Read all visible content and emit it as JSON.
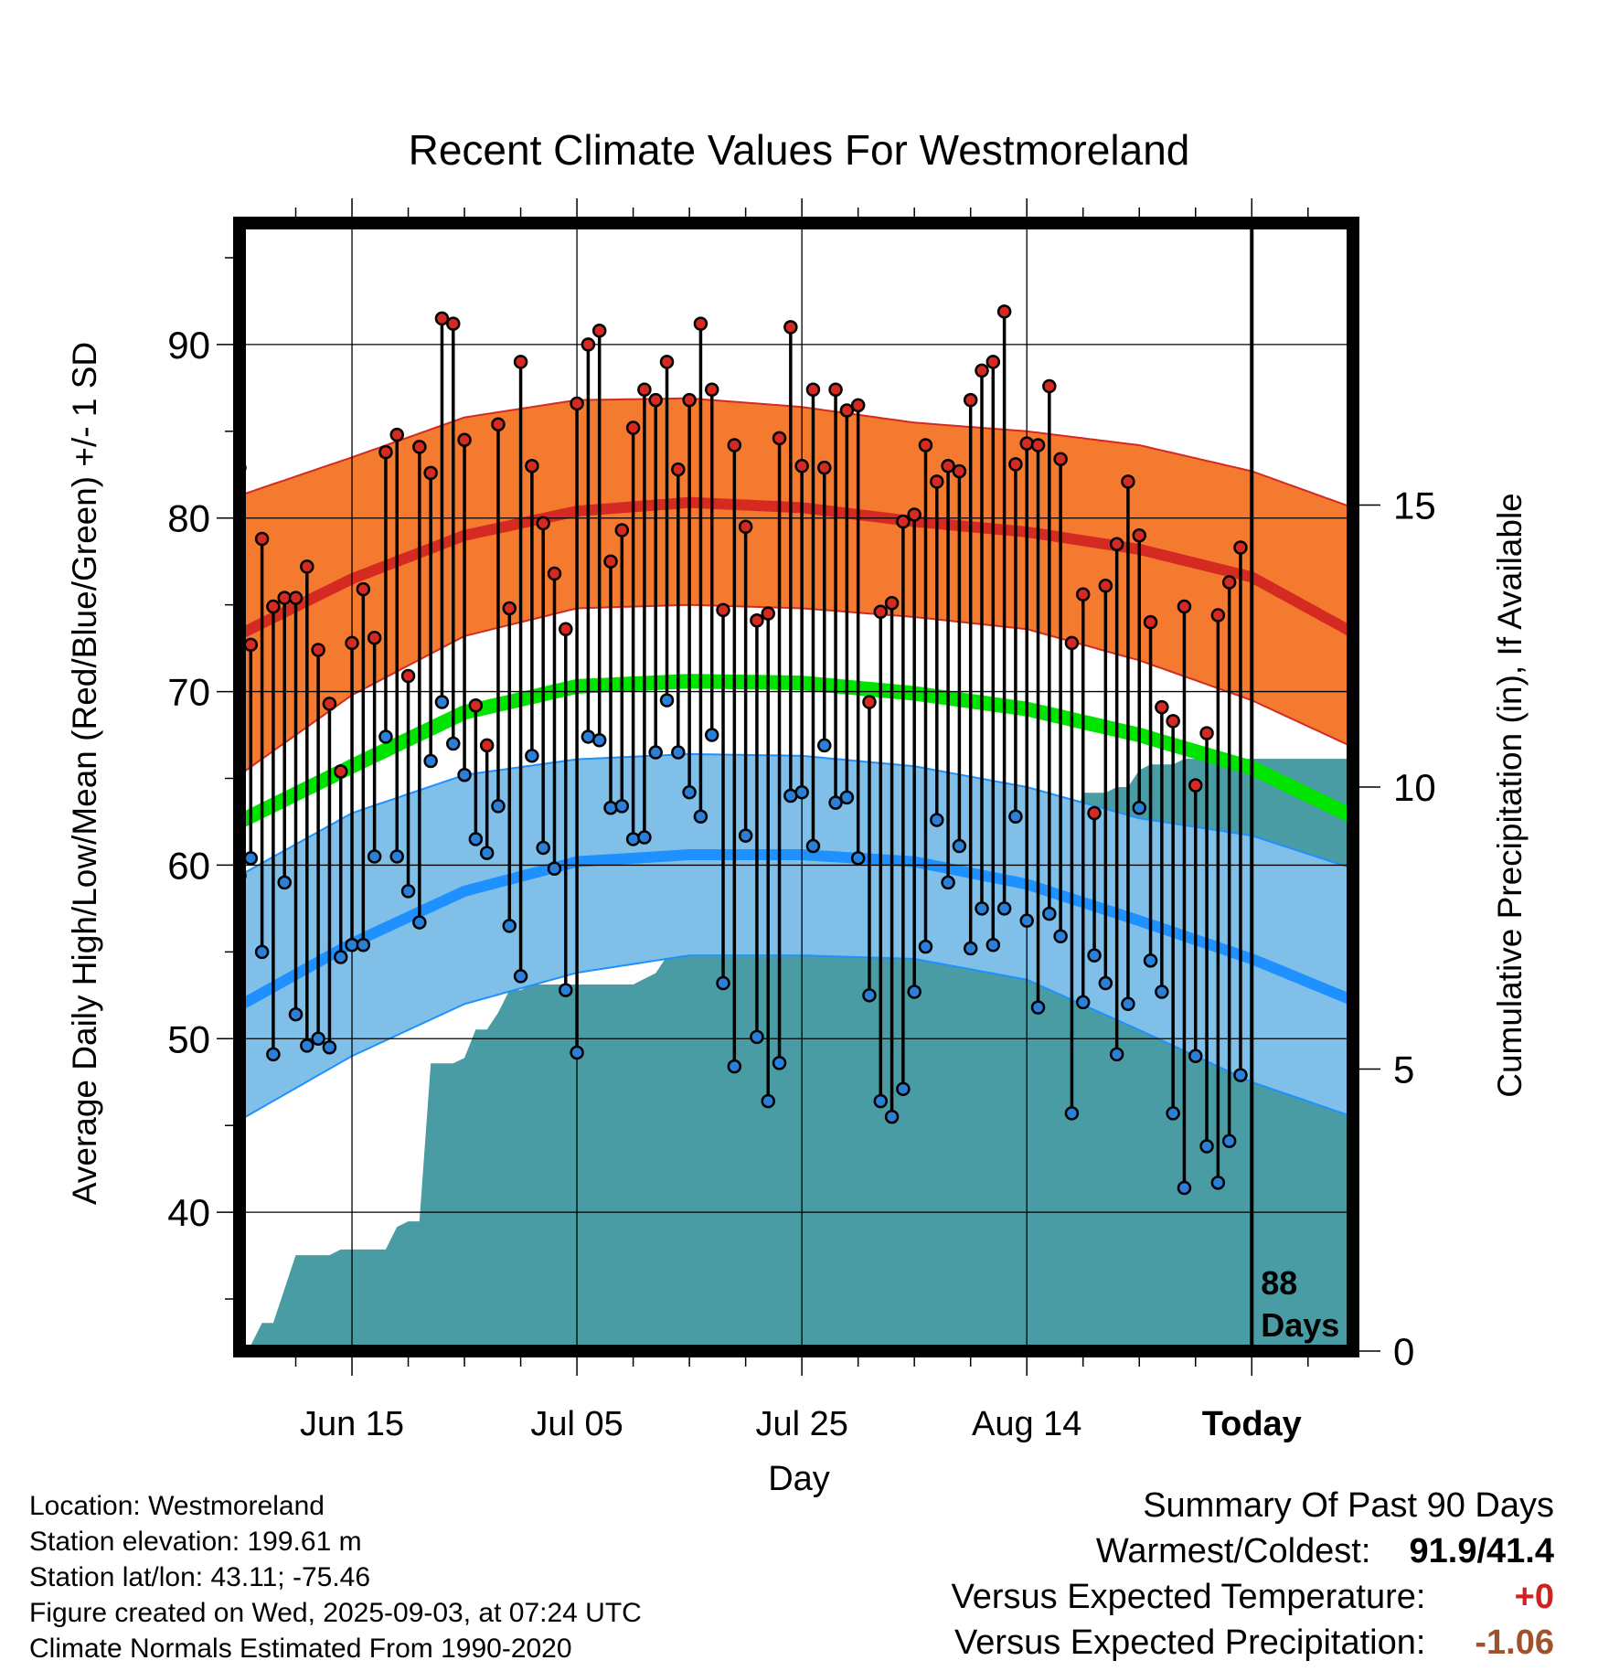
{
  "chart_data": {
    "type": "line",
    "title": "Recent Climate Values For Westmoreland",
    "xlabel": "Day",
    "ylabel_left": "Average Daily High/Low/Mean (Red/Blue/Green) +/- 1 SD",
    "ylabel_right": "Cumulative Precipitation (in), If Available",
    "ylim_left": [
      32,
      97
    ],
    "ylim_right": [
      0,
      20
    ],
    "x_range_days": [
      -90,
      9
    ],
    "x_ticks": [
      {
        "day": -80,
        "label": "Jun 15"
      },
      {
        "day": -60,
        "label": "Jul 05"
      },
      {
        "day": -40,
        "label": "Jul 25"
      },
      {
        "day": -20,
        "label": "Aug 14"
      },
      {
        "day": 0,
        "label": "Today"
      }
    ],
    "y_ticks_left": [
      40,
      50,
      60,
      70,
      80,
      90
    ],
    "y_ticks_right": [
      0,
      5,
      10,
      15
    ],
    "grid": true,
    "today_marker": {
      "day": 0,
      "label_line1": "88",
      "label_line2": "Days"
    },
    "normals": {
      "days": [
        -90,
        -80,
        -70,
        -60,
        -50,
        -40,
        -30,
        -20,
        -10,
        0,
        9
      ],
      "high_mean": [
        73.3,
        76.5,
        79.0,
        80.4,
        80.9,
        80.6,
        79.8,
        79.2,
        78.2,
        76.6,
        73.4
      ],
      "high_upper": [
        81.3,
        83.5,
        85.8,
        86.8,
        86.9,
        86.4,
        85.5,
        85.0,
        84.2,
        82.7,
        80.6
      ],
      "high_lower": [
        65.2,
        69.8,
        73.2,
        74.8,
        75.0,
        74.8,
        74.3,
        73.6,
        71.8,
        69.5,
        66.8
      ],
      "mean_temp": [
        62.5,
        65.7,
        68.8,
        70.3,
        70.6,
        70.5,
        69.9,
        69.0,
        67.5,
        65.6,
        62.8
      ],
      "low_mean": [
        51.9,
        55.5,
        58.5,
        60.2,
        60.6,
        60.6,
        60.2,
        58.9,
        56.8,
        54.6,
        52.2
      ],
      "low_upper": [
        59.4,
        63.0,
        65.2,
        66.1,
        66.4,
        66.3,
        65.7,
        64.5,
        62.7,
        61.7,
        59.8
      ],
      "low_lower": [
        45.3,
        49.0,
        52.0,
        53.8,
        54.8,
        54.8,
        54.6,
        53.4,
        50.5,
        47.5,
        45.5
      ]
    },
    "daily_days": [
      -90,
      -89,
      -88,
      -87,
      -86,
      -85,
      -84,
      -83,
      -82,
      -81,
      -80,
      -79,
      -78,
      -77,
      -76,
      -75,
      -74,
      -73,
      -72,
      -71,
      -70,
      -69,
      -68,
      -67,
      -66,
      -65,
      -64,
      -63,
      -62,
      -61,
      -60,
      -59,
      -58,
      -57,
      -56,
      -55,
      -54,
      -53,
      -52,
      -51,
      -50,
      -49,
      -48,
      -47,
      -46,
      -45,
      -44,
      -43,
      -42,
      -41,
      -40,
      -39,
      -38,
      -37,
      -36,
      -35,
      -34,
      -33,
      -32,
      -31,
      -30,
      -29,
      -28,
      -27,
      -26,
      -25,
      -24,
      -23,
      -22,
      -21,
      -20,
      -19,
      -18,
      -17,
      -16,
      -15,
      -14,
      -13,
      -12,
      -11,
      -10,
      -9,
      -8,
      -7,
      -6,
      -5,
      -4,
      -3,
      -2,
      -1
    ],
    "daily_highs": [
      82.9,
      72.7,
      78.8,
      74.9,
      75.4,
      75.4,
      77.2,
      72.4,
      69.3,
      65.4,
      72.8,
      75.9,
      73.1,
      83.8,
      84.8,
      70.9,
      84.1,
      82.6,
      91.5,
      91.2,
      84.5,
      69.2,
      66.9,
      85.4,
      74.8,
      89.0,
      83.0,
      79.7,
      76.8,
      73.6,
      86.6,
      90.0,
      90.8,
      77.5,
      79.3,
      85.2,
      87.4,
      86.8,
      89.0,
      82.8,
      86.8,
      91.2,
      87.4,
      74.7,
      84.2,
      79.5,
      74.1,
      74.5,
      84.6,
      91.0,
      83.0,
      87.4,
      82.9,
      87.4,
      86.2,
      86.5,
      69.4,
      74.6,
      75.1,
      79.8,
      80.2,
      84.2,
      82.1,
      83.0,
      82.7,
      86.8,
      88.5,
      89.0,
      91.9,
      83.1,
      84.3,
      84.2,
      87.6,
      83.4,
      72.8,
      75.6,
      63.0,
      76.1,
      78.5,
      82.1,
      79.0,
      74.0,
      69.1,
      68.3,
      74.9,
      64.6,
      67.6,
      74.4,
      76.3,
      78.3
    ],
    "daily_lows": [
      59.4,
      60.4,
      55.0,
      49.1,
      59.0,
      51.4,
      49.6,
      50.0,
      49.5,
      54.7,
      55.4,
      55.4,
      60.5,
      67.4,
      60.5,
      58.5,
      56.7,
      66.0,
      69.4,
      67.0,
      65.2,
      61.5,
      60.7,
      63.4,
      56.5,
      53.6,
      66.3,
      61.0,
      59.8,
      52.8,
      49.2,
      67.4,
      67.2,
      63.3,
      63.4,
      61.5,
      61.6,
      66.5,
      69.5,
      66.5,
      64.2,
      62.8,
      67.5,
      53.2,
      48.4,
      61.7,
      50.1,
      46.4,
      48.6,
      64.0,
      64.2,
      61.1,
      66.9,
      63.6,
      63.9,
      60.4,
      52.5,
      46.4,
      45.5,
      47.1,
      52.7,
      55.3,
      62.6,
      59.0,
      61.1,
      55.2,
      57.5,
      55.4,
      57.5,
      62.8,
      56.8,
      51.8,
      57.2,
      55.9,
      45.7,
      52.1,
      54.8,
      53.2,
      49.1,
      52.0,
      63.3,
      54.5,
      52.7,
      45.7,
      41.4,
      49.0,
      43.8,
      41.7,
      44.1,
      47.9
    ],
    "precip_days": [
      -90,
      -89,
      -88,
      -87,
      -86,
      -85,
      -84,
      -83,
      -82,
      -81,
      -80,
      -79,
      -78,
      -77,
      -76,
      -75,
      -74,
      -73,
      -72,
      -71,
      -70,
      -69,
      -68,
      -67,
      -66,
      -65,
      -64,
      -63,
      -62,
      -61,
      -60,
      -59,
      -58,
      -57,
      -56,
      -55,
      -54,
      -53,
      -52,
      -51,
      -50,
      -49,
      -48,
      -47,
      -46,
      -45,
      -44,
      -43,
      -42,
      -41,
      -40,
      -39,
      -38,
      -37,
      -36,
      -35,
      -34,
      -33,
      -32,
      -31,
      -30,
      -29,
      -28,
      -27,
      -26,
      -25,
      -24,
      -23,
      -22,
      -21,
      -20,
      -19,
      -18,
      -17,
      -16,
      -15,
      -14,
      -13,
      -12,
      -11,
      -10,
      -9,
      -8,
      -7,
      -6,
      -5,
      -4,
      -3,
      -2,
      -1,
      0,
      1,
      2,
      3,
      4,
      5,
      6,
      7,
      8,
      9
    ],
    "precip_cum": [
      0.0,
      0.1,
      0.5,
      0.5,
      1.1,
      1.7,
      1.7,
      1.7,
      1.7,
      1.8,
      1.8,
      1.8,
      1.8,
      1.8,
      2.2,
      2.3,
      2.3,
      5.1,
      5.1,
      5.1,
      5.2,
      5.7,
      5.7,
      6.0,
      6.4,
      6.4,
      6.5,
      6.5,
      6.5,
      6.5,
      6.5,
      6.5,
      6.5,
      6.5,
      6.5,
      6.5,
      6.6,
      6.7,
      7.0,
      7.0,
      7.0,
      7.0,
      7.0,
      7.0,
      7.0,
      7.0,
      7.0,
      7.0,
      7.0,
      7.0,
      7.1,
      8.1,
      8.1,
      8.1,
      8.6,
      8.6,
      8.6,
      8.6,
      8.6,
      8.6,
      8.6,
      8.6,
      8.6,
      8.6,
      8.6,
      8.6,
      8.6,
      8.6,
      8.6,
      8.6,
      8.6,
      8.6,
      8.7,
      9.2,
      9.2,
      9.9,
      9.9,
      9.9,
      10.0,
      10.0,
      10.3,
      10.4,
      10.4,
      10.4,
      10.5,
      10.5,
      10.5,
      10.5,
      10.5,
      10.5,
      10.5,
      10.5,
      10.5,
      10.5,
      10.5,
      10.5,
      10.5,
      10.5,
      10.5,
      10.5
    ]
  },
  "colors": {
    "high_band": "#f47a30",
    "high_line": "#d42a22",
    "mean_line": "#00e400",
    "low_band": "#80c0e8",
    "low_line": "#1e90ff",
    "precip": "#4a9ca4",
    "high_dot": "#d42a22",
    "low_dot": "#2a80d8"
  },
  "footer": {
    "location": "Location: Westmoreland",
    "elevation": "Station elevation: 199.61 m",
    "latlon": "Station lat/lon: 43.11; -75.46",
    "created": "Figure created on Wed, 2025-09-03, at 07:24 UTC",
    "normals": "Climate Normals Estimated From 1990-2020"
  },
  "summary": {
    "heading": "Summary Of Past 90 Days",
    "warmest_label": "Warmest/Coldest:",
    "warmest_value": "91.9/41.4",
    "temp_label": "Versus Expected Temperature:",
    "temp_value": "+0",
    "temp_color": "#d02020",
    "precip_label": "Versus Expected Precipitation:",
    "precip_value": "-1.06",
    "precip_color": "#a0522d"
  }
}
